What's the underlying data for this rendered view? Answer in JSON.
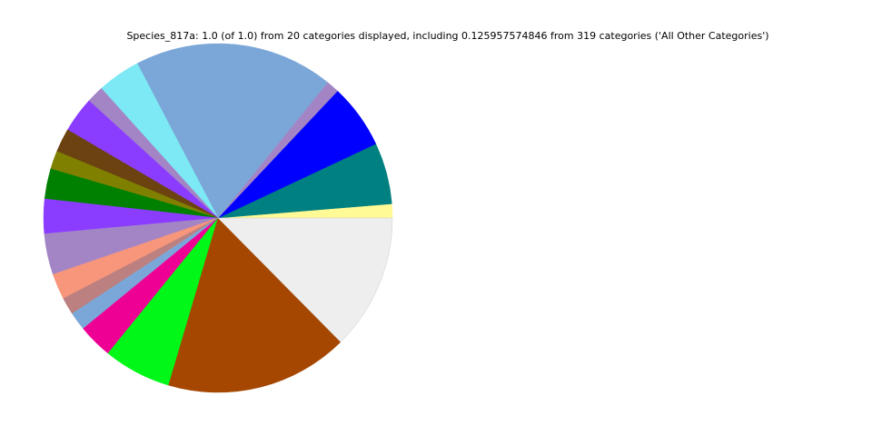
{
  "chart_data": {
    "type": "pie",
    "title": "Species_817a: 1.0 (of 1.0) from 20 categories displayed, including 0.125957574846 from 319 categories ('All Other Categories')",
    "values": [
      0.013,
      0.057,
      0.06,
      0.012,
      0.185,
      0.04,
      0.016,
      0.033,
      0.022,
      0.017,
      0.028,
      0.032,
      0.038,
      0.024,
      0.016,
      0.017,
      0.032,
      0.063,
      0.17,
      0.126
    ],
    "colors": [
      "#fffa96",
      "#008080",
      "#0000ff",
      "#a385c6",
      "#7ba7d8",
      "#7ce9f4",
      "#a385c6",
      "#8b3dff",
      "#6b4210",
      "#808000",
      "#008000",
      "#8b3dff",
      "#a385c6",
      "#f7967a",
      "#bc8080",
      "#7ba7d8",
      "#ef0094",
      "#00f718",
      "#a54700",
      "#eeeeee"
    ],
    "startangle": 0,
    "counterclock": true
  }
}
